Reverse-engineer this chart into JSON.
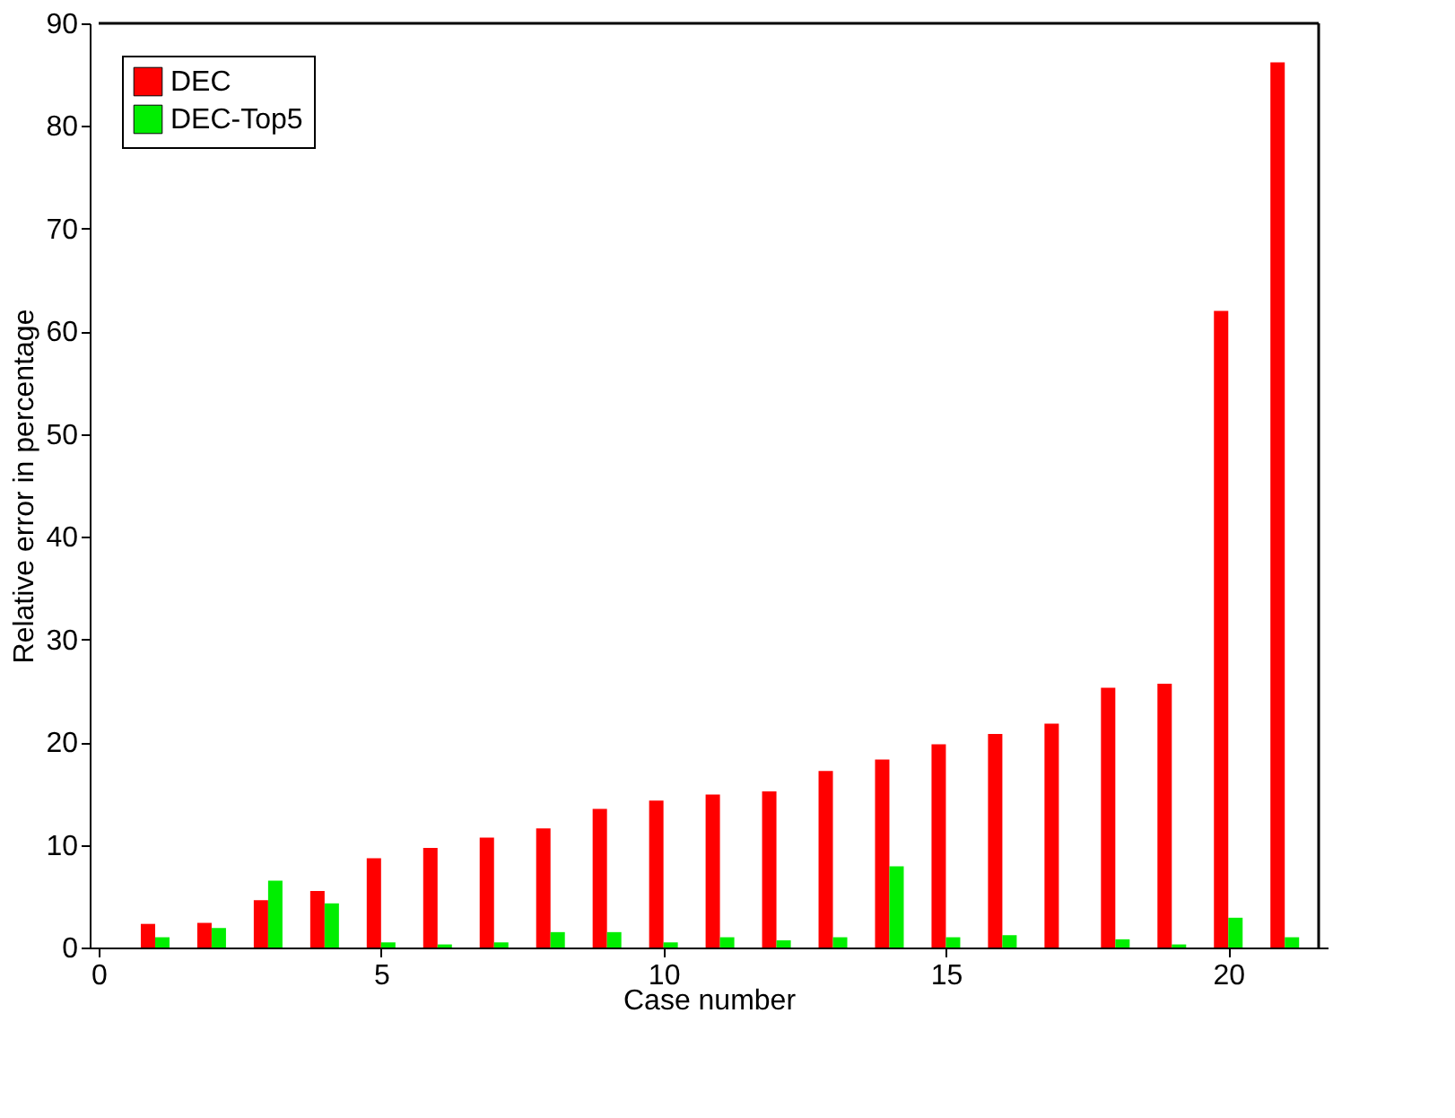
{
  "chart_data": {
    "type": "bar",
    "xlabel": "Case number",
    "ylabel": "Relative error in percentage",
    "x": [
      1,
      2,
      3,
      4,
      5,
      6,
      7,
      8,
      9,
      10,
      11,
      12,
      13,
      14,
      15,
      16,
      17,
      18,
      19,
      20,
      21
    ],
    "series": [
      {
        "name": "DEC",
        "color": "#ff0000",
        "values": [
          2.3,
          2.4,
          4.6,
          5.5,
          8.7,
          9.7,
          10.7,
          11.6,
          13.5,
          14.3,
          14.9,
          15.2,
          17.2,
          18.3,
          19.8,
          20.8,
          21.8,
          25.3,
          25.7,
          62,
          86.2
        ]
      },
      {
        "name": "DEC-Top5",
        "color": "#00ee00",
        "values": [
          1.0,
          1.9,
          6.5,
          4.3,
          0.5,
          0.3,
          0.5,
          1.5,
          1.5,
          0.5,
          1.0,
          0.7,
          1.0,
          7.9,
          1.0,
          1.2,
          0,
          0.8,
          0.3,
          2.9,
          1.0
        ]
      }
    ],
    "xlim": [
      0,
      21.6
    ],
    "xticks": [
      0,
      5,
      10,
      15,
      20
    ],
    "ylim": [
      0,
      90
    ],
    "yticks": [
      0,
      10,
      20,
      30,
      40,
      50,
      60,
      70,
      80,
      90
    ],
    "grid": false,
    "legend": "top left"
  }
}
